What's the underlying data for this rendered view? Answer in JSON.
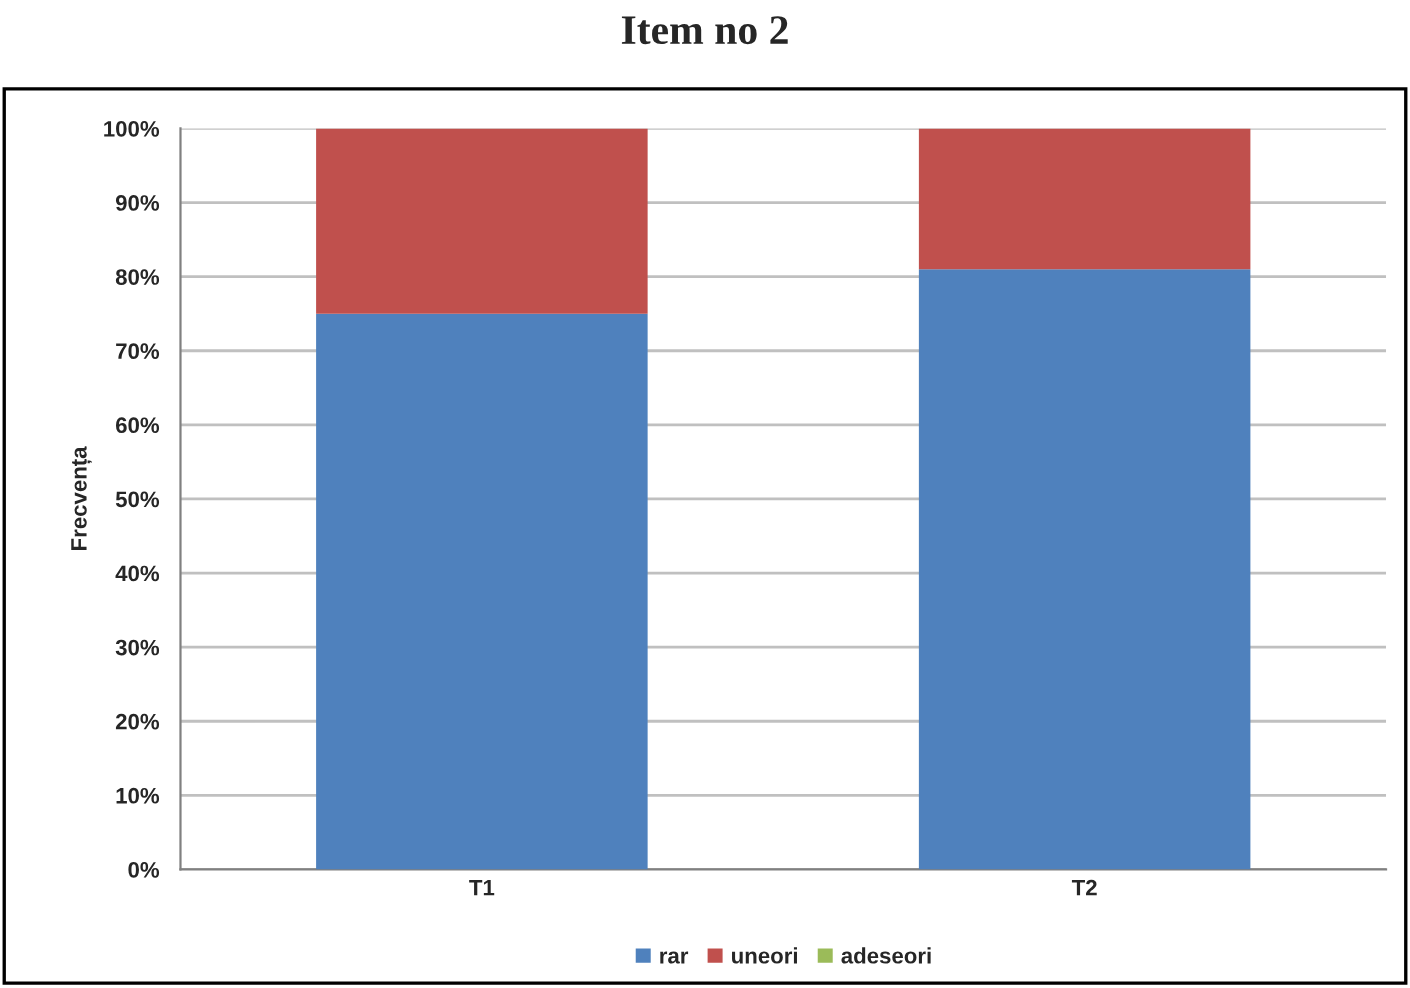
{
  "chart_data": {
    "type": "bar",
    "title": "Item no 2",
    "ylabel": "Frecvența",
    "categories": [
      "T1",
      "T2"
    ],
    "stacked": true,
    "series": [
      {
        "name": "rar",
        "color": "#4f81bd",
        "values": [
          75,
          81
        ]
      },
      {
        "name": "uneori",
        "color": "#c0504d",
        "values": [
          25,
          19
        ]
      },
      {
        "name": "adeseori",
        "color": "#9bbb59",
        "values": [
          null,
          null
        ]
      }
    ],
    "ylim": [
      0,
      100
    ],
    "yticks": [
      {
        "value": 0,
        "label": "0%"
      },
      {
        "value": 10,
        "label": "10%"
      },
      {
        "value": 20,
        "label": "20%"
      },
      {
        "value": 30,
        "label": "30%"
      },
      {
        "value": 40,
        "label": "40%"
      },
      {
        "value": 50,
        "label": "50%"
      },
      {
        "value": 60,
        "label": "60%"
      },
      {
        "value": 70,
        "label": "70%"
      },
      {
        "value": 80,
        "label": "80%"
      },
      {
        "value": 90,
        "label": "90%"
      },
      {
        "value": 100,
        "label": "100%"
      }
    ],
    "grid": "y",
    "legend": "bottom"
  }
}
